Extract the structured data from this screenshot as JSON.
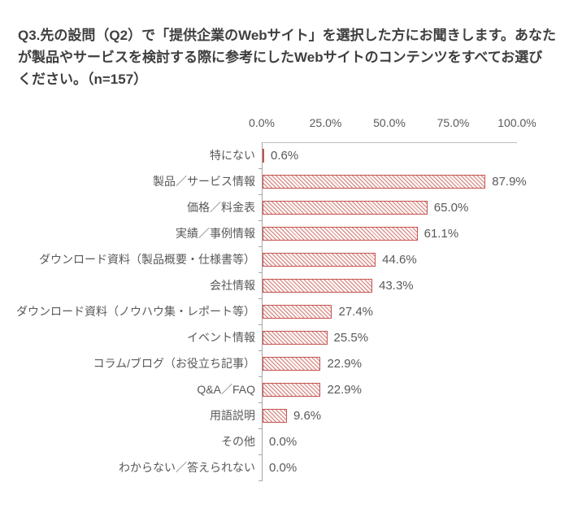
{
  "title": {
    "text": "Q3.先の設問（Q2）で「提供企業のWebサイト」を選択した方にお聞きします。あなたが製品やサービスを検討する際に参考にしたWebサイトのコンテンツをすべてお選びください。（n=157）"
  },
  "chart_data": {
    "type": "bar",
    "orientation": "horizontal",
    "title": "Q3.先の設問（Q2）で「提供企業のWebサイト」を選択した方にお聞きします。あなたが製品やサービスを検討する際に参考にしたWebサイトのコンテンツをすべてお選びください。（n=157）",
    "n": 157,
    "categories": [
      "特にない",
      "製品／サービス情報",
      "価格／料金表",
      "実績／事例情報",
      "ダウンロード資料（製品概要・仕様書等）",
      "会社情報",
      "ダウンロード資料（ノウハウ集・レポート等）",
      "イベント情報",
      "コラム/ブログ（お役立ち記事）",
      "Q&A／FAQ",
      "用語説明",
      "その他",
      "わからない／答えられない"
    ],
    "values": [
      0.6,
      87.9,
      65.0,
      61.1,
      44.6,
      43.3,
      27.4,
      25.5,
      22.9,
      22.9,
      9.6,
      0.0,
      0.0
    ],
    "value_labels": [
      "0.6%",
      "87.9%",
      "65.0%",
      "61.1%",
      "44.6%",
      "43.3%",
      "27.4%",
      "25.5%",
      "22.9%",
      "22.9%",
      "9.6%",
      "0.0%",
      "0.0%"
    ],
    "x_ticks": [
      "0.0%",
      "25.0%",
      "50.0%",
      "75.0%",
      "100.0%"
    ],
    "x_tick_positions": [
      0,
      25,
      50,
      75,
      100
    ],
    "xlim": [
      0,
      100
    ],
    "grid": "top-axis-line-only",
    "legend": "none",
    "colors": {
      "bar_border": "#c5534f",
      "bar_hatch": "#d2817c",
      "bar_background": "#fdf6f5",
      "axis": "#a6a6a6",
      "top_axis_line": "#bfbfbf",
      "label_text": "#595959",
      "title_text": "#3f3f3f"
    }
  }
}
